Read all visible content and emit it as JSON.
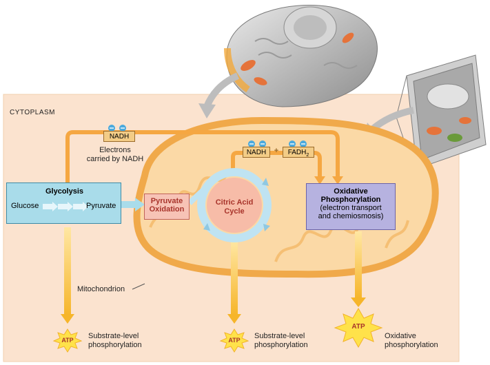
{
  "labels": {
    "cytoplasm": "CYTOPLASM",
    "nadh_top": "NADH",
    "electrons_carried": "Electrons\ncarried by NADH",
    "nadh_right": "NADH",
    "plus": "+",
    "fadh2": "FADH",
    "fadh2_sub": "2",
    "mitochondrion": "Mitochondrion"
  },
  "stages": {
    "glycolysis": {
      "title": "Glycolysis",
      "input": "Glucose",
      "output": "Pyruvate"
    },
    "pyruvate_oxidation": {
      "title_line1": "Pyruvate",
      "title_line2": "Oxidation"
    },
    "citric_acid_cycle": {
      "title_line1": "Citric Acid",
      "title_line2": "Cycle"
    },
    "oxidative_phosphorylation": {
      "title_line1": "Oxidative",
      "title_line2": "Phosphorylation",
      "detail_line1": "(electron transport",
      "detail_line2": "and chemiosmosis)"
    }
  },
  "atp_outputs": [
    {
      "atp": "ATP",
      "caption_line1": "Substrate-level",
      "caption_line2": "phosphorylation"
    },
    {
      "atp": "ATP",
      "caption_line1": "Substrate-level",
      "caption_line2": "phosphorylation"
    },
    {
      "atp": "ATP",
      "caption_line1": "Oxidative",
      "caption_line2": "phosphorylation"
    }
  ],
  "colors": {
    "cytoplasm_bg": "#fbe3cf",
    "mito_outer": "#f4c07a",
    "mito_fill": "#fbd9a6",
    "orange_arrow": "#f5a742",
    "glycolysis_box": "#a9dcea",
    "pyruvate_box": "#f7c3b6",
    "citric_fill": "#f7bca8",
    "cycle_ring": "#bfe3f2",
    "oxphos_box": "#b6b2e0",
    "atp_star": "#ffe24a",
    "electron_blue": "#4aa9dd"
  }
}
